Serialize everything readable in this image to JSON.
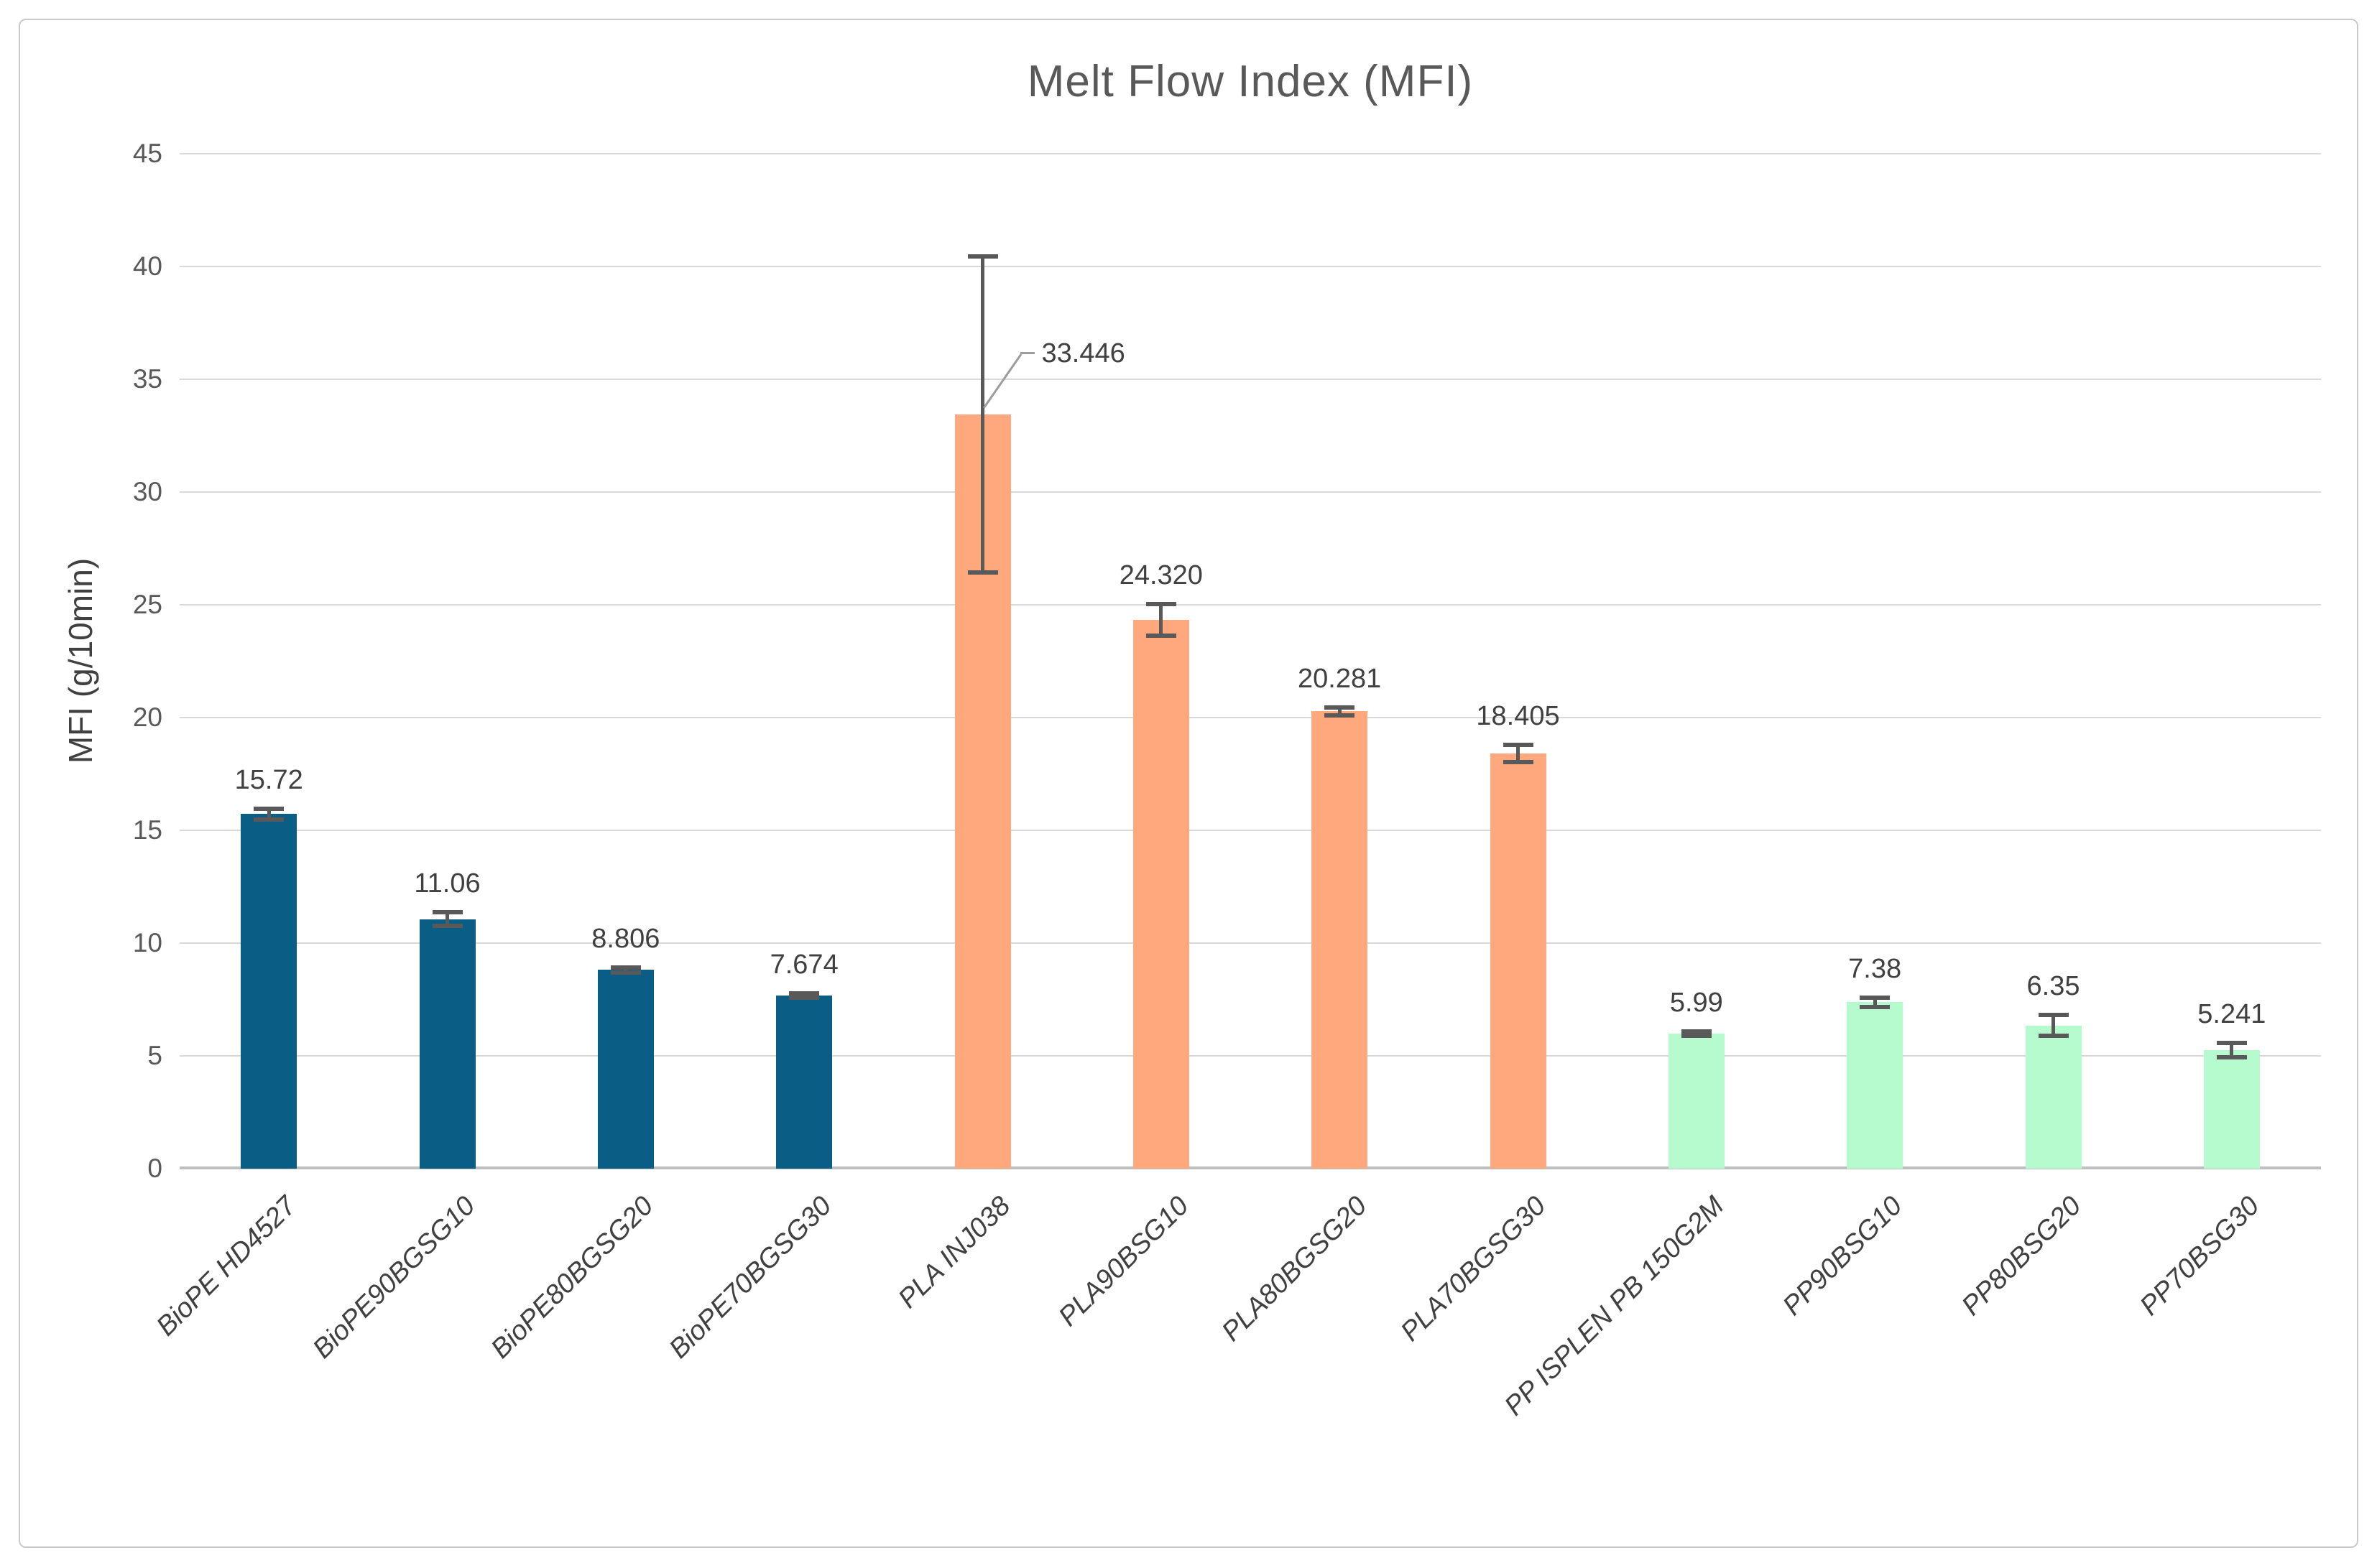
{
  "title": "Melt Flow Index (MFI)",
  "y_axis": {
    "label": "MFI (g/10min)",
    "tick_labels": [
      "45",
      "40",
      "35",
      "30",
      "25",
      "20",
      "15",
      "10",
      "5",
      "0"
    ]
  },
  "chart_data": {
    "type": "bar",
    "title": "Melt Flow Index (MFI)",
    "xlabel": "",
    "ylabel": "MFI (g/10min)",
    "ylim": [
      0,
      45
    ],
    "ytick_step": 5,
    "grid": true,
    "legend": "none",
    "categories": [
      "BioPE HD4527",
      "BioPE90BGSG10",
      "BioPE80BGSG20",
      "BioPE70BGSG30",
      "PLA INJ038",
      "PLA90BSG10",
      "PLA80BGSG20",
      "PLA70BGSG30",
      "PP ISPLEN PB 150G2M",
      "PP90BSG10",
      "PP80BSG20",
      "PP70BSG30"
    ],
    "values": [
      15.72,
      11.06,
      8.806,
      7.674,
      33.446,
      24.32,
      20.281,
      18.405,
      5.99,
      7.38,
      6.35,
      5.241
    ],
    "value_labels": [
      "15.72",
      "11.06",
      "8.806",
      "7.674",
      "33.446",
      "24.320",
      "20.281",
      "18.405",
      "5.99",
      "7.38",
      "6.35",
      "5.241"
    ],
    "error_bars": [
      0.25,
      0.3,
      0.1,
      0.1,
      7.0,
      0.7,
      0.17,
      0.38,
      0.1,
      0.2,
      0.45,
      0.32
    ],
    "bar_colors": [
      "#0a5e85",
      "#0a5e85",
      "#0a5e85",
      "#0a5e85",
      "#ffa87d",
      "#ffa87d",
      "#ffa87d",
      "#ffa87d",
      "#b5fbcd",
      "#b5fbcd",
      "#b5fbcd",
      "#b5fbcd"
    ],
    "callout": {
      "index": 4,
      "label": "33.446"
    }
  },
  "colors": {
    "biope_teal": "#0a5e85",
    "pla_orange": "#ffa87d",
    "pp_green": "#b5fbcd",
    "gridline": "#d9d9d9",
    "axis_line": "#bfbfbf",
    "title_gray": "#595959",
    "label_gray": "#404040",
    "error_bar": "#595959"
  }
}
